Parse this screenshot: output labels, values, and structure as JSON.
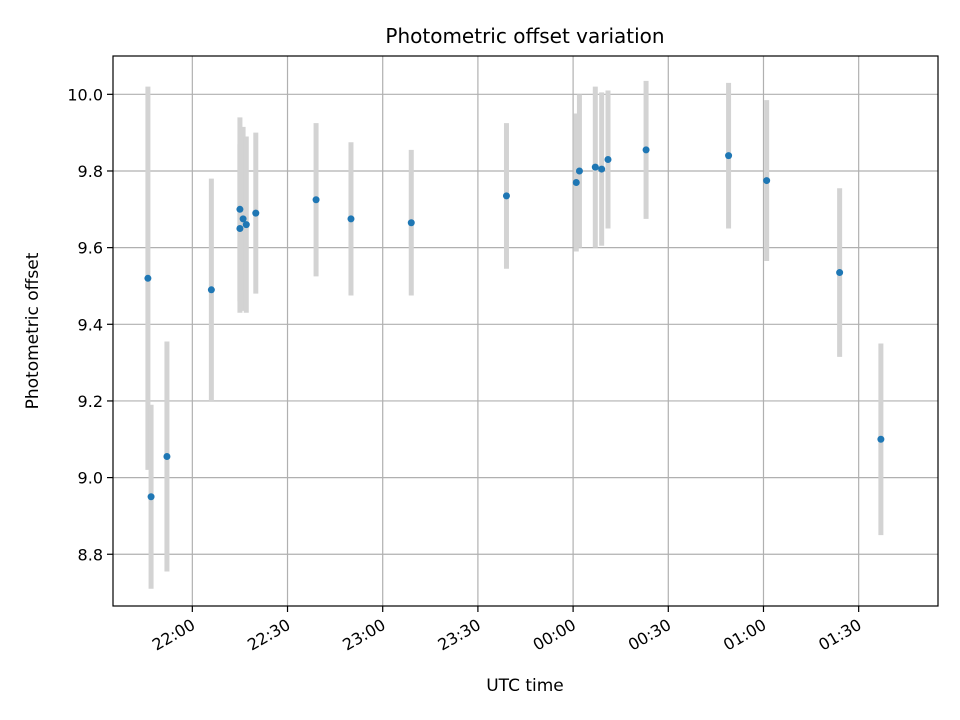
{
  "chart_data": {
    "type": "scatter",
    "title": "Photometric offset variation",
    "xlabel": "UTC time",
    "ylabel": "Photometric offset",
    "grid": true,
    "x_ticks": [
      "22:00",
      "22:30",
      "23:00",
      "23:30",
      "00:00",
      "00:30",
      "01:00",
      "01:30"
    ],
    "y_ticks": [
      "8.8",
      "9.0",
      "9.2",
      "9.4",
      "9.6",
      "9.8",
      "10.0"
    ],
    "xlim": [
      "2000-01-01 21:35",
      "2000-01-02 01:55"
    ],
    "ylim": [
      8.665,
      10.1
    ],
    "colors": {
      "point": "#1f77b4",
      "errorbar": "#d3d3d3",
      "grid": "#b0b0b0"
    },
    "series": [
      {
        "points": [
          {
            "x": "2000-01-01 21:46",
            "y": 9.52,
            "err": 0.5
          },
          {
            "x": "2000-01-01 21:47",
            "y": 8.95,
            "err": 0.24
          },
          {
            "x": "2000-01-01 21:52",
            "y": 9.055,
            "err": 0.3
          },
          {
            "x": "2000-01-01 22:06",
            "y": 9.49,
            "err": 0.29
          },
          {
            "x": "2000-01-01 22:15",
            "y": 9.65,
            "err": 0.22
          },
          {
            "x": "2000-01-01 22:15",
            "y": 9.7,
            "err": 0.24
          },
          {
            "x": "2000-01-01 22:16",
            "y": 9.675,
            "err": 0.24
          },
          {
            "x": "2000-01-01 22:17",
            "y": 9.66,
            "err": 0.23
          },
          {
            "x": "2000-01-01 22:20",
            "y": 9.69,
            "err": 0.21
          },
          {
            "x": "2000-01-01 22:39",
            "y": 9.725,
            "err": 0.2
          },
          {
            "x": "2000-01-01 22:50",
            "y": 9.675,
            "err": 0.2
          },
          {
            "x": "2000-01-01 23:09",
            "y": 9.665,
            "err": 0.19
          },
          {
            "x": "2000-01-01 23:39",
            "y": 9.735,
            "err": 0.19
          },
          {
            "x": "2000-01-02 00:01",
            "y": 9.77,
            "err": 0.18
          },
          {
            "x": "2000-01-02 00:02",
            "y": 9.8,
            "err": 0.2
          },
          {
            "x": "2000-01-02 00:07",
            "y": 9.81,
            "err": 0.21
          },
          {
            "x": "2000-01-02 00:09",
            "y": 9.805,
            "err": 0.2
          },
          {
            "x": "2000-01-02 00:11",
            "y": 9.83,
            "err": 0.18
          },
          {
            "x": "2000-01-02 00:23",
            "y": 9.855,
            "err": 0.18
          },
          {
            "x": "2000-01-02 00:49",
            "y": 9.84,
            "err": 0.19
          },
          {
            "x": "2000-01-02 01:01",
            "y": 9.775,
            "err": 0.21
          },
          {
            "x": "2000-01-02 01:24",
            "y": 9.535,
            "err": 0.22
          },
          {
            "x": "2000-01-02 01:37",
            "y": 9.1,
            "err": 0.25
          }
        ]
      }
    ]
  }
}
